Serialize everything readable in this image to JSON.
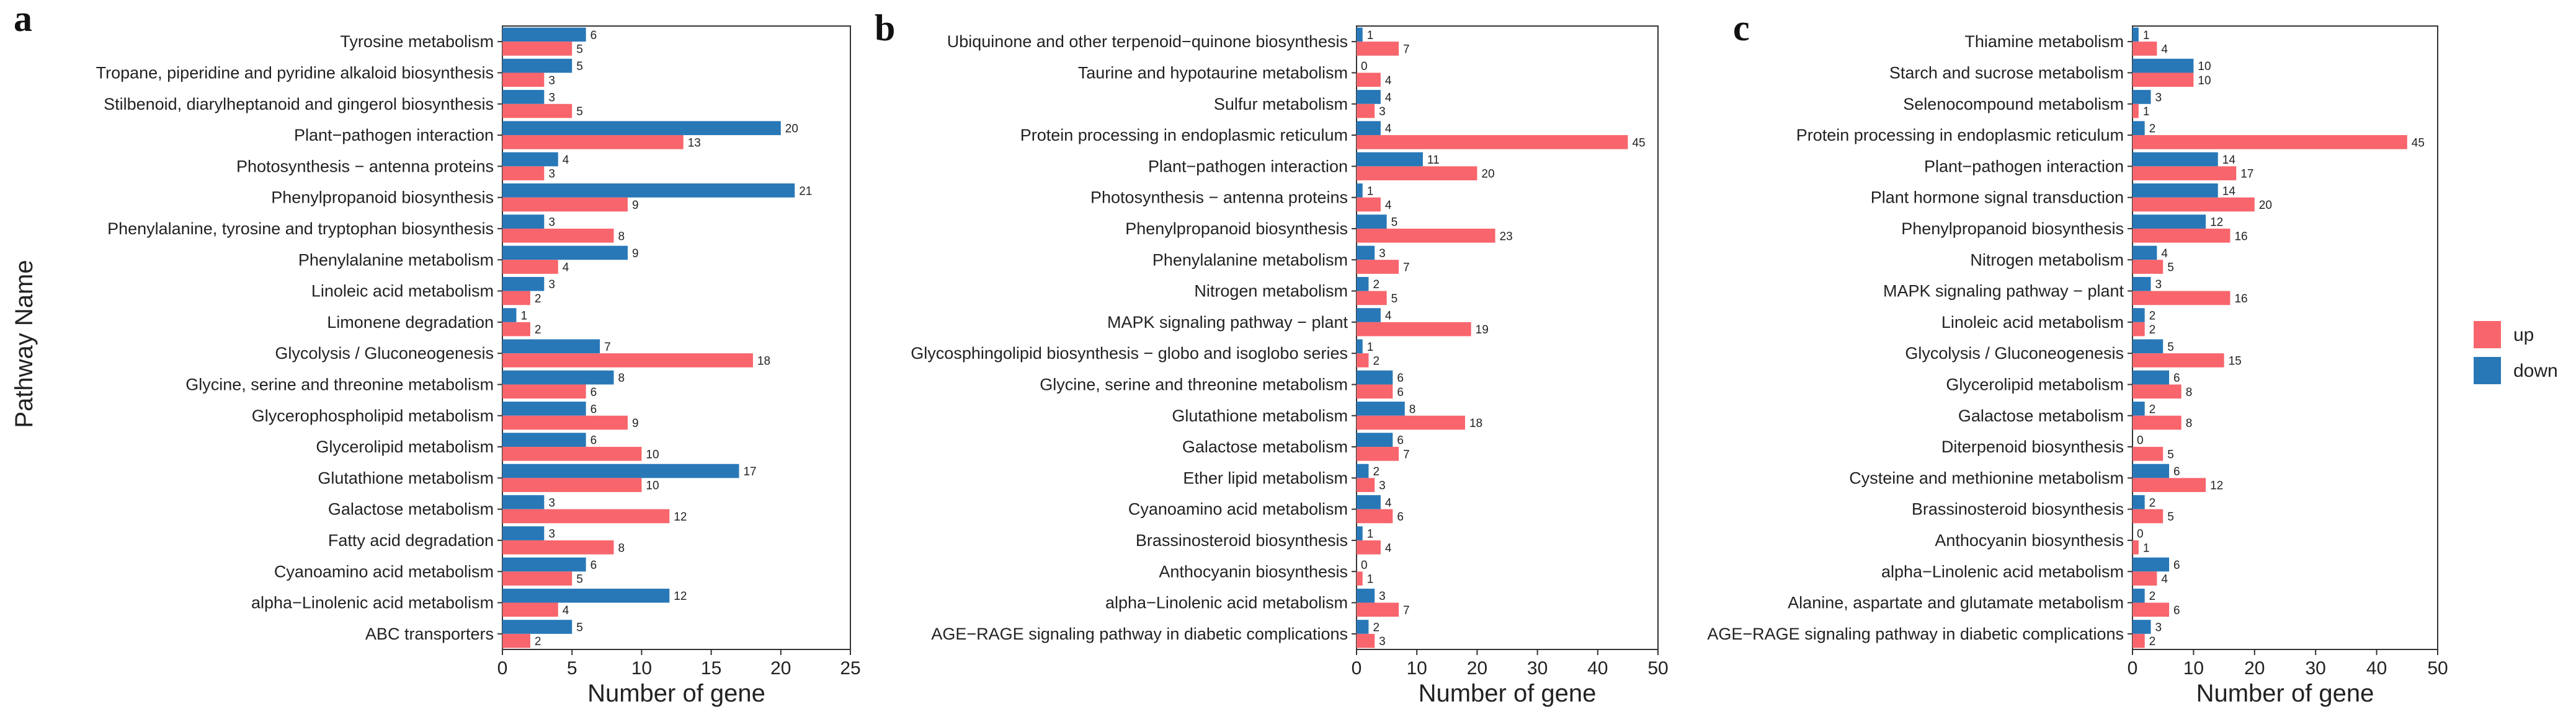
{
  "colors": {
    "up": "#F8656C",
    "down": "#2878B8"
  },
  "legend": [
    {
      "key": "up",
      "label": "up"
    },
    {
      "key": "down",
      "label": "down"
    }
  ],
  "shared_ylabel": "Pathway Name",
  "chart_data": [
    {
      "panel": "a",
      "type": "bar",
      "orientation": "horizontal",
      "xlabel": "Number of gene",
      "xlim": [
        0,
        25
      ],
      "xticks": [
        0,
        5,
        10,
        15,
        20,
        25
      ],
      "categories": [
        "Tyrosine metabolism",
        "Tropane, piperidine and pyridine alkaloid biosynthesis",
        "Stilbenoid, diarylheptanoid and gingerol biosynthesis",
        "Plant−pathogen interaction",
        "Photosynthesis − antenna proteins",
        "Phenylpropanoid biosynthesis",
        "Phenylalanine, tyrosine and tryptophan biosynthesis",
        "Phenylalanine metabolism",
        "Linoleic acid metabolism",
        "Limonene degradation",
        "Glycolysis / Gluconeogenesis",
        "Glycine, serine and threonine metabolism",
        "Glycerophospholipid metabolism",
        "Glycerolipid metabolism",
        "Glutathione metabolism",
        "Galactose metabolism",
        "Fatty acid degradation",
        "Cyanoamino acid metabolism",
        "alpha−Linolenic acid metabolism",
        "ABC transporters"
      ],
      "series": [
        {
          "name": "down",
          "values": [
            6,
            5,
            3,
            20,
            4,
            21,
            3,
            9,
            3,
            1,
            7,
            8,
            6,
            6,
            17,
            3,
            3,
            6,
            12,
            5
          ]
        },
        {
          "name": "up",
          "values": [
            5,
            3,
            5,
            13,
            3,
            9,
            8,
            4,
            2,
            2,
            18,
            6,
            9,
            10,
            10,
            12,
            8,
            5,
            4,
            2
          ]
        }
      ]
    },
    {
      "panel": "b",
      "type": "bar",
      "orientation": "horizontal",
      "xlabel": "Number of gene",
      "xlim": [
        0,
        50
      ],
      "xticks": [
        0,
        10,
        20,
        30,
        40,
        50
      ],
      "categories": [
        "Ubiquinone and other terpenoid−quinone biosynthesis",
        "Taurine and hypotaurine metabolism",
        "Sulfur metabolism",
        "Protein processing in endoplasmic reticulum",
        "Plant−pathogen interaction",
        "Photosynthesis − antenna proteins",
        "Phenylpropanoid biosynthesis",
        "Phenylalanine metabolism",
        "Nitrogen metabolism",
        "MAPK signaling pathway − plant",
        "Glycosphingolipid biosynthesis − globo and isoglobo series",
        "Glycine, serine and threonine metabolism",
        "Glutathione metabolism",
        "Galactose metabolism",
        "Ether lipid metabolism",
        "Cyanoamino acid metabolism",
        "Brassinosteroid biosynthesis",
        "Anthocyanin biosynthesis",
        "alpha−Linolenic acid metabolism",
        "AGE−RAGE signaling pathway in diabetic complications"
      ],
      "series": [
        {
          "name": "down",
          "values": [
            1,
            0,
            4,
            4,
            11,
            1,
            5,
            3,
            2,
            4,
            1,
            6,
            8,
            6,
            2,
            4,
            1,
            0,
            3,
            2
          ]
        },
        {
          "name": "up",
          "values": [
            7,
            4,
            3,
            45,
            20,
            4,
            23,
            7,
            5,
            19,
            2,
            6,
            18,
            7,
            3,
            6,
            4,
            1,
            7,
            3
          ]
        }
      ]
    },
    {
      "panel": "c",
      "type": "bar",
      "orientation": "horizontal",
      "xlabel": "Number of gene",
      "xlim": [
        0,
        50
      ],
      "xticks": [
        0,
        10,
        20,
        30,
        40,
        50
      ],
      "categories": [
        "Thiamine metabolism",
        "Starch and sucrose metabolism",
        "Selenocompound metabolism",
        "Protein processing in endoplasmic reticulum",
        "Plant−pathogen interaction",
        "Plant hormone signal transduction",
        "Phenylpropanoid biosynthesis",
        "Nitrogen metabolism",
        "MAPK signaling pathway − plant",
        "Linoleic acid metabolism",
        "Glycolysis / Gluconeogenesis",
        "Glycerolipid metabolism",
        "Galactose metabolism",
        "Diterpenoid biosynthesis",
        "Cysteine and methionine metabolism",
        "Brassinosteroid biosynthesis",
        "Anthocyanin biosynthesis",
        "alpha−Linolenic acid metabolism",
        "Alanine, aspartate and glutamate metabolism",
        "AGE−RAGE signaling pathway in diabetic complications"
      ],
      "series": [
        {
          "name": "down",
          "values": [
            1,
            10,
            3,
            2,
            14,
            14,
            12,
            4,
            3,
            2,
            5,
            6,
            2,
            0,
            6,
            2,
            0,
            6,
            2,
            3
          ]
        },
        {
          "name": "up",
          "values": [
            4,
            10,
            1,
            45,
            17,
            20,
            16,
            5,
            16,
            2,
            15,
            8,
            8,
            5,
            12,
            5,
            1,
            4,
            6,
            2
          ]
        }
      ]
    }
  ]
}
